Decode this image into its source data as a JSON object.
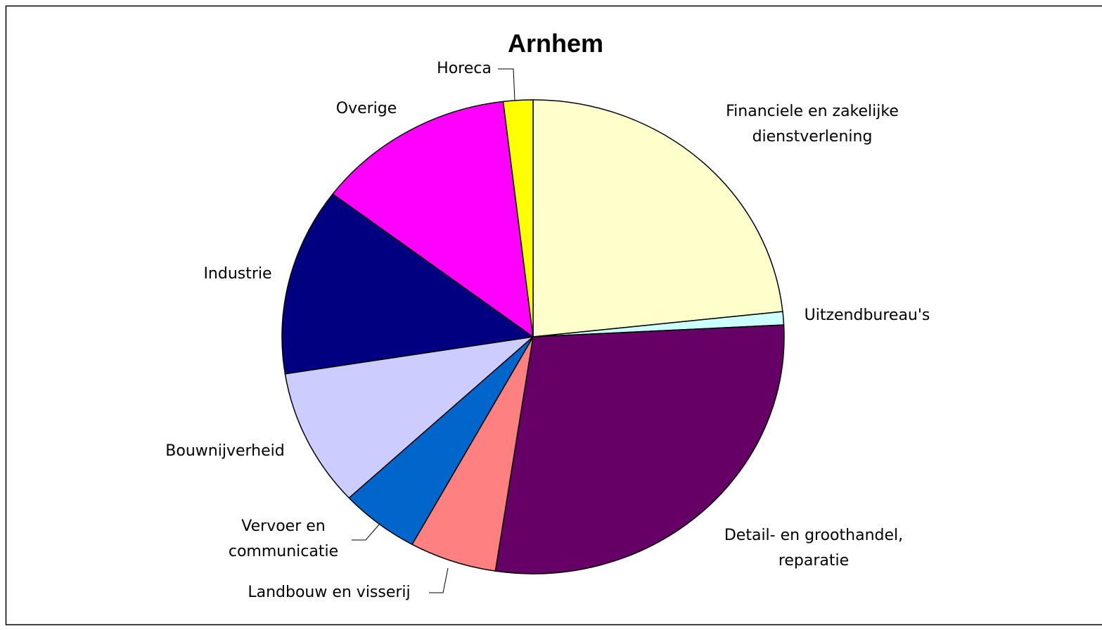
{
  "chart_data": {
    "type": "pie",
    "title": "Arnhem",
    "categories": [
      "Financiele en zakelijke dienstverlening",
      "Uitzendbureau's",
      "Detail- en groothandel, reparatie",
      "Landbouw en visserij",
      "Vervoer en communicatie",
      "Bouwnijverheid",
      "Industrie",
      "Overige",
      "Horeca"
    ],
    "values": [
      23.3,
      0.9,
      28.2,
      5.6,
      5.1,
      9.4,
      12.8,
      12.8,
      1.9
    ],
    "colors": [
      "#ffffcc",
      "#ccffff",
      "#660066",
      "#ff8080",
      "#0066cc",
      "#ccccff",
      "#000080",
      "#ff00ff",
      "#ffff00"
    ]
  }
}
